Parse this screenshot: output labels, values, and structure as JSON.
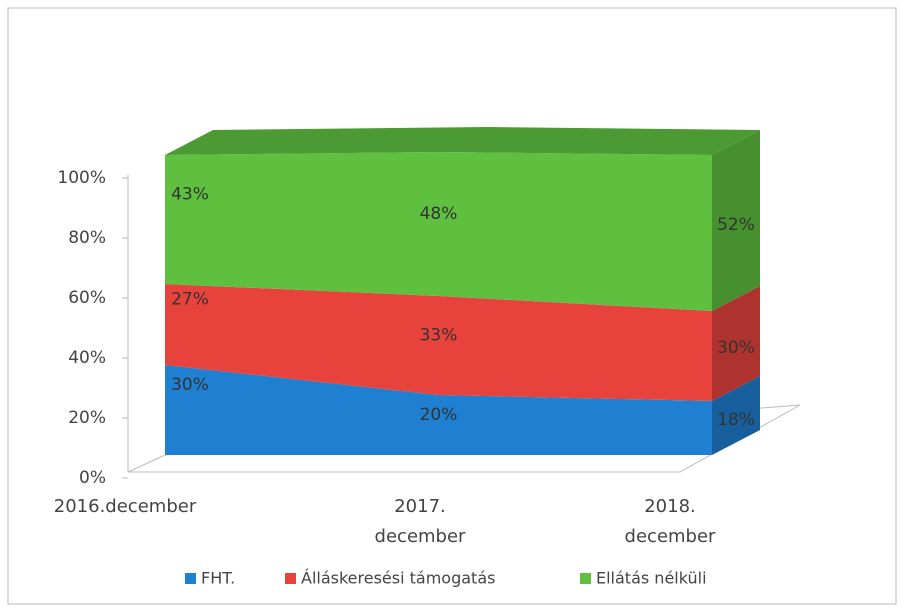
{
  "chart_data": {
    "type": "area3d_stacked",
    "categories": [
      "2016.december",
      "2017.\ndecember",
      "2018.\ndecember"
    ],
    "series": [
      {
        "name": "FHT.",
        "color": "#1f7fd0",
        "values": [
          30,
          20,
          18
        ],
        "value_labels": [
          "30%",
          "20%",
          "18%"
        ]
      },
      {
        "name": "Álláskeresési támogatás",
        "color": "#e8423c",
        "values": [
          27,
          33,
          30
        ],
        "value_labels": [
          "27%",
          "33%",
          "30%"
        ]
      },
      {
        "name": "Ellátás nélküli",
        "color": "#5fc040",
        "values": [
          43,
          48,
          52
        ],
        "value_labels": [
          "43%",
          "48%",
          "52%"
        ]
      }
    ],
    "ylim": [
      0,
      100
    ],
    "yticks": [
      {
        "value": 0,
        "label": "0%"
      },
      {
        "value": 20,
        "label": "20%"
      },
      {
        "value": 40,
        "label": "40%"
      },
      {
        "value": 60,
        "label": "60%"
      },
      {
        "value": 80,
        "label": "80%"
      },
      {
        "value": 100,
        "label": "100%"
      }
    ],
    "legend": "bottom"
  }
}
